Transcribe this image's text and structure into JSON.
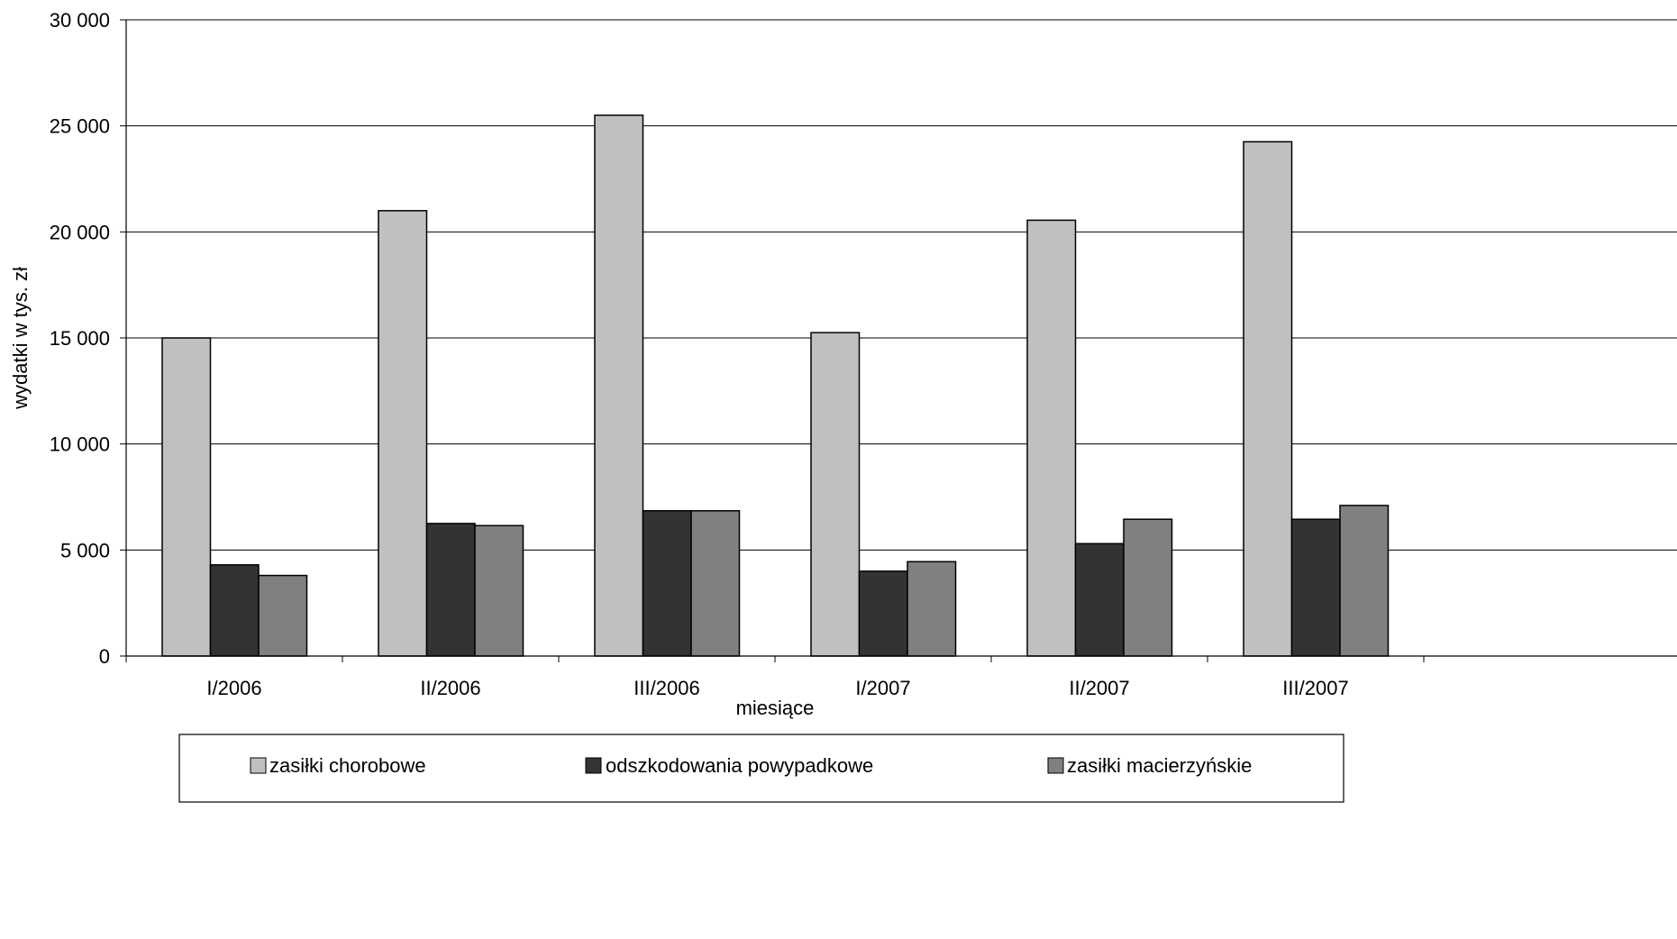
{
  "chart_data": {
    "type": "bar",
    "title": "",
    "xlabel": "miesiące",
    "ylabel": "wydatki w tys. zł",
    "ylim": [
      0,
      30000
    ],
    "ytick_values": [
      0,
      5000,
      10000,
      15000,
      20000,
      25000,
      30000
    ],
    "ytick_labels": [
      "0",
      "5 000",
      "10 000",
      "15 000",
      "20 000",
      "25 000",
      "30 000"
    ],
    "categories": [
      "I/2006",
      "II/2006",
      "III/2006",
      "I/2007",
      "II/2007",
      "III/2007"
    ],
    "series": [
      {
        "name": "zasiłki chorobowe",
        "color": "#c0c0c0",
        "values": [
          15000,
          21000,
          25500,
          15250,
          20550,
          24250
        ]
      },
      {
        "name": "odszkodowania powypadkowe",
        "color": "#333333",
        "values": [
          4300,
          6250,
          6850,
          4000,
          5300,
          6450
        ]
      },
      {
        "name": "zasiłki macierzyńskie",
        "color": "#808080",
        "values": [
          3800,
          6150,
          6850,
          4450,
          6450,
          7100
        ]
      }
    ],
    "grid": true,
    "legend_position": "bottom"
  }
}
